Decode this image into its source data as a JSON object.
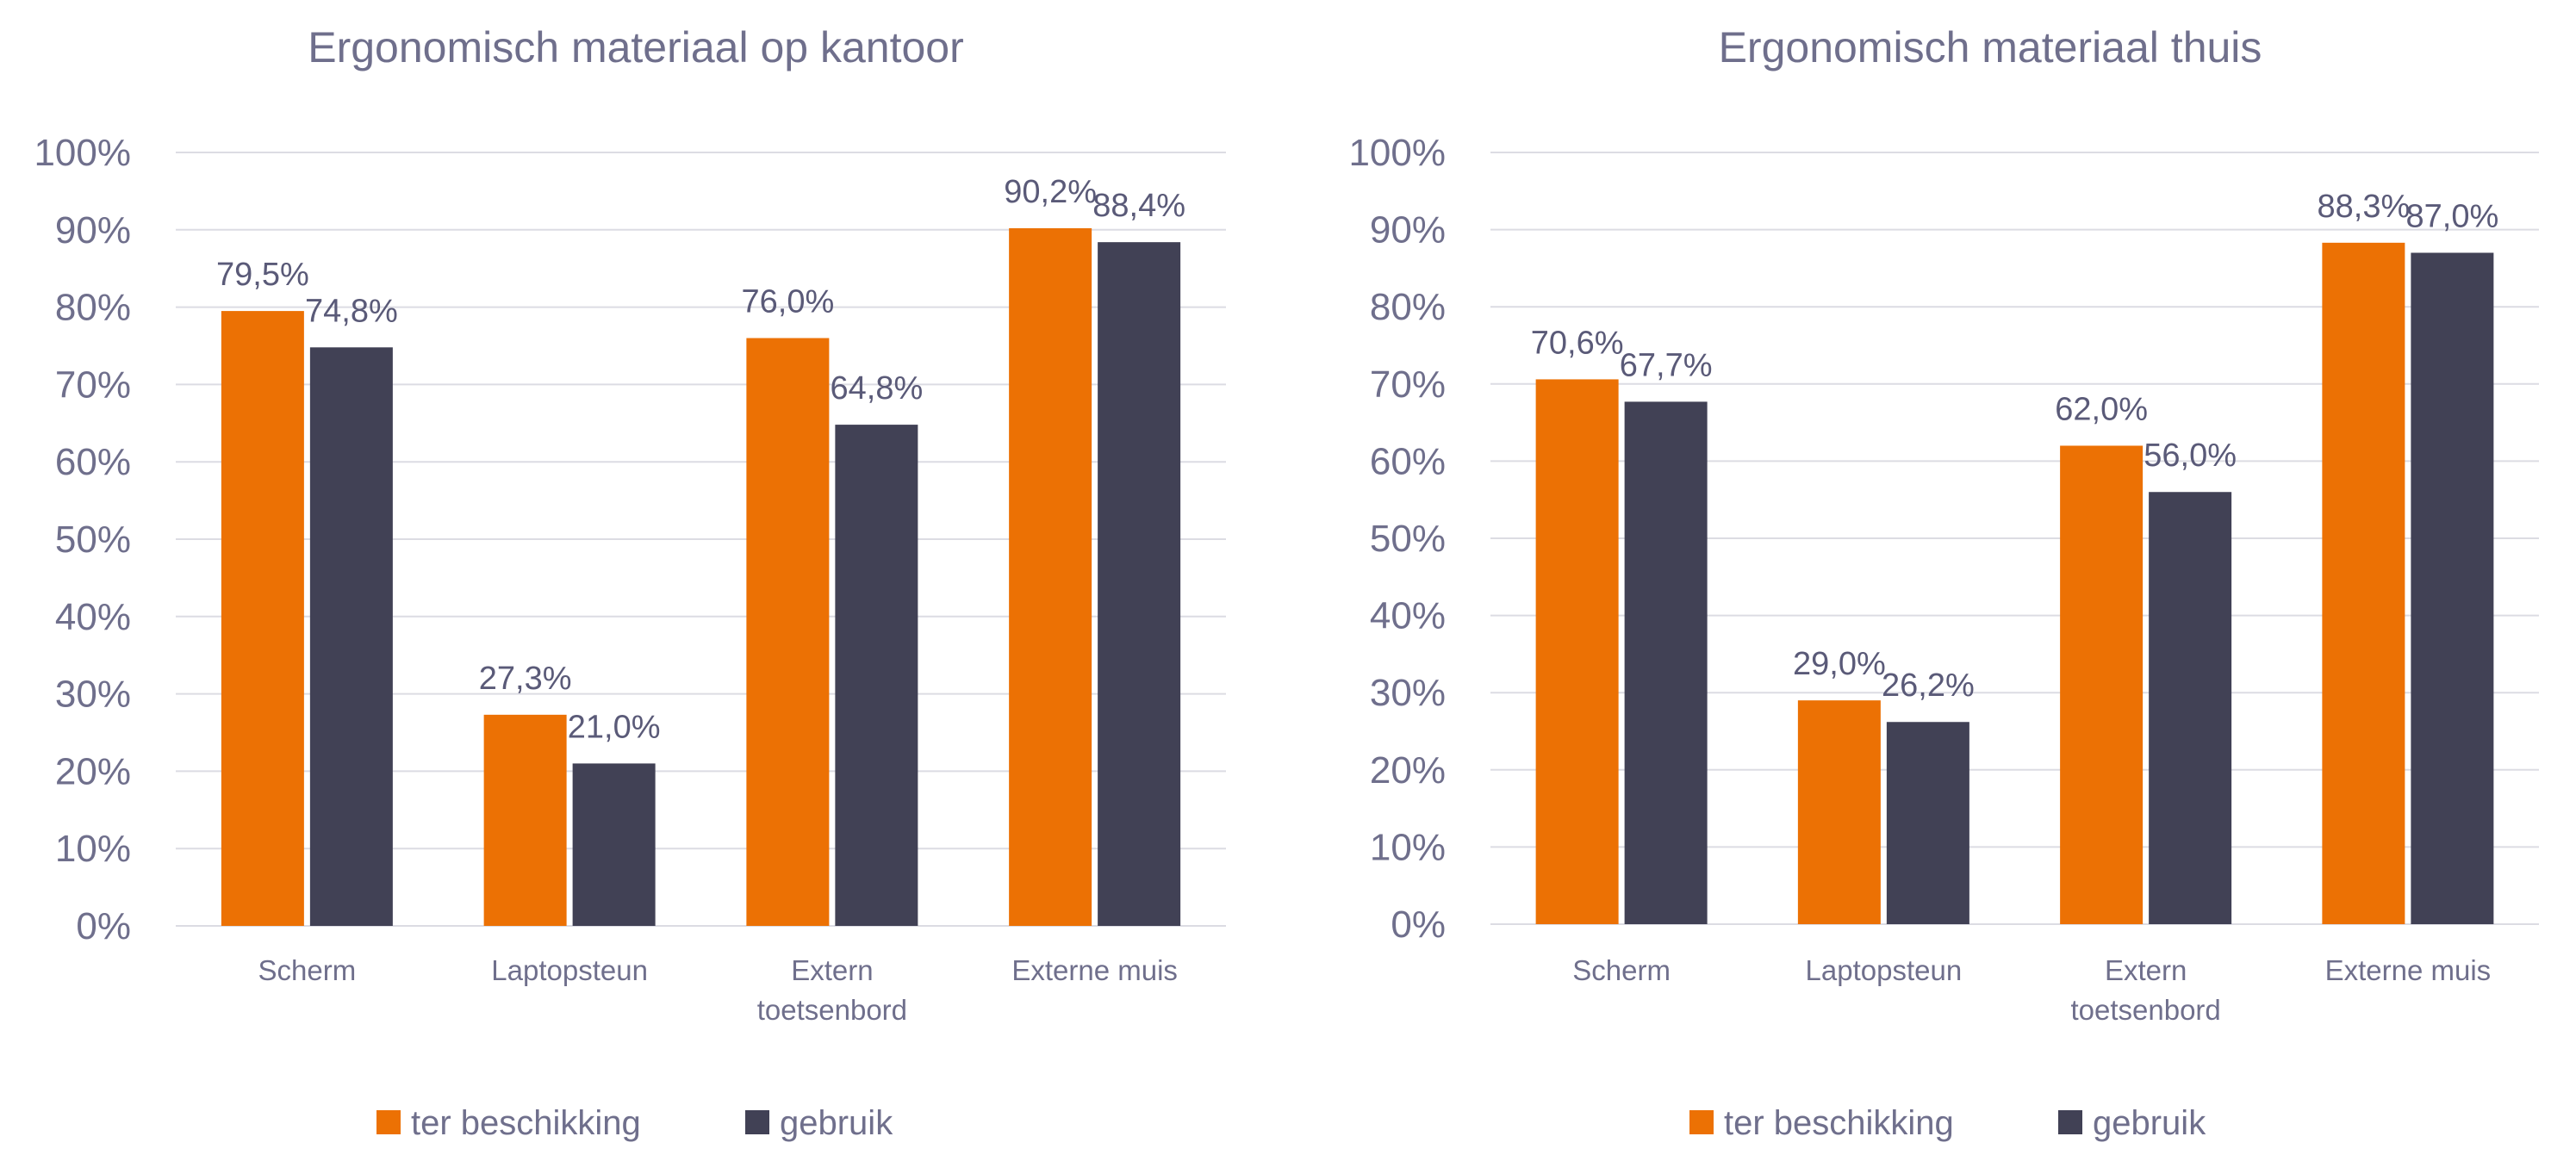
{
  "colors": {
    "ter_beschikking": "#EC7104",
    "gebruik": "#414155",
    "text": "#6F6F8C",
    "grid": "#DCDCE3"
  },
  "chart_data": [
    {
      "type": "bar",
      "title": "Ergonomisch materiaal op kantoor",
      "categories": [
        [
          "Scherm"
        ],
        [
          "Laptopsteun"
        ],
        [
          "Extern",
          "toetsenbord"
        ],
        [
          "Externe muis"
        ]
      ],
      "series": [
        {
          "name": "ter beschikking",
          "values": [
            79.5,
            27.3,
            76.0,
            90.2
          ],
          "labels": [
            "79,5%",
            "27,3%",
            "76,0%",
            "90,2%"
          ]
        },
        {
          "name": "gebruik",
          "values": [
            74.8,
            21.0,
            64.8,
            88.4
          ],
          "labels": [
            "74,8%",
            "21,0%",
            "64,8%",
            "88,4%"
          ]
        }
      ],
      "yticks": [
        "0%",
        "10%",
        "20%",
        "30%",
        "40%",
        "50%",
        "60%",
        "70%",
        "80%",
        "90%",
        "100%"
      ],
      "ylim": [
        0,
        100
      ],
      "grid": true,
      "legend": "bottom",
      "xlabel": "",
      "ylabel": ""
    },
    {
      "type": "bar",
      "title": "Ergonomisch materiaal thuis",
      "categories": [
        [
          "Scherm"
        ],
        [
          "Laptopsteun"
        ],
        [
          "Extern",
          "toetsenbord"
        ],
        [
          "Externe muis"
        ]
      ],
      "series": [
        {
          "name": "ter beschikking",
          "values": [
            70.6,
            29.0,
            62.0,
            88.3
          ],
          "labels": [
            "70,6%",
            "29,0%",
            "62,0%",
            "88,3%"
          ]
        },
        {
          "name": "gebruik",
          "values": [
            67.7,
            26.2,
            56.0,
            87.0
          ],
          "labels": [
            "67,7%",
            "26,2%",
            "56,0%",
            "87,0%"
          ]
        }
      ],
      "yticks": [
        "0%",
        "10%",
        "20%",
        "30%",
        "40%",
        "50%",
        "60%",
        "70%",
        "80%",
        "90%",
        "100%"
      ],
      "ylim": [
        0,
        100
      ],
      "grid": true,
      "legend": "bottom",
      "xlabel": "",
      "ylabel": ""
    }
  ]
}
